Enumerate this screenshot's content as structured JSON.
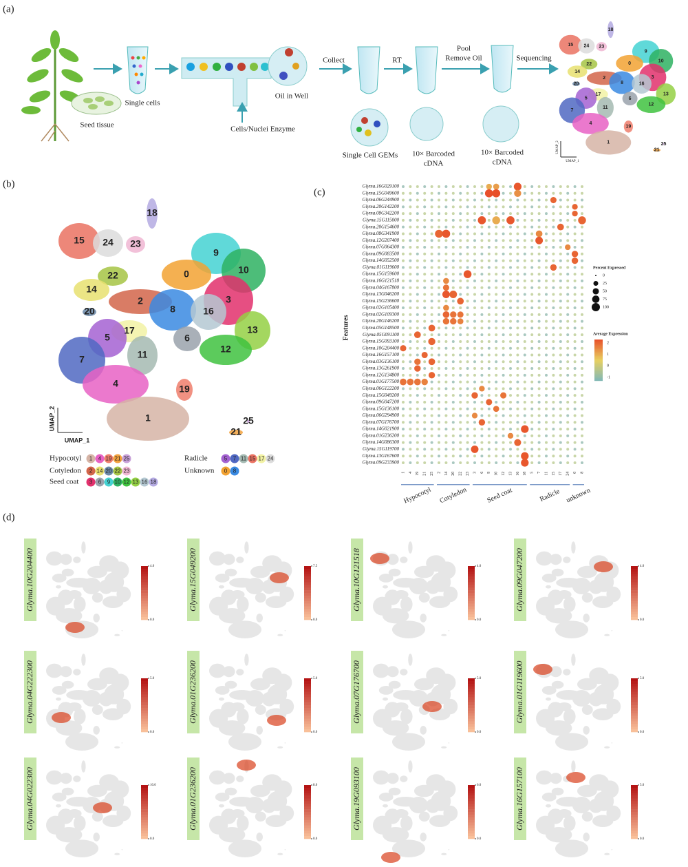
{
  "panel_a": {
    "label": "(a)",
    "seed_tissue": "Seed tissue",
    "single_cells": "Single cells",
    "enzyme": "Cells/Nuclei Enzyme",
    "oil_in_well": "Oil in Well",
    "collect": "Collect",
    "rt": "RT",
    "pool": [
      "Pool",
      "Remove Oil"
    ],
    "sequencing": "Sequencing",
    "gems": "Single Cell GEMs",
    "barcoded_1": [
      "10× Barcoded",
      "cDNA"
    ],
    "barcoded_2": [
      "10× Barcoded",
      "cDNA"
    ],
    "umap_labels": [
      18,
      15,
      24,
      23,
      9,
      10,
      22,
      14,
      0,
      2,
      3,
      8,
      16,
      20,
      17,
      13,
      5,
      6,
      12,
      11,
      7,
      4,
      19,
      1,
      25,
      21
    ],
    "umap_y": "UMAP_2",
    "umap_x": "UMAP_1"
  },
  "panel_b": {
    "label": "(b)",
    "cluster_labels": [
      18,
      15,
      24,
      23,
      9,
      10,
      22,
      14,
      0,
      2,
      3,
      8,
      16,
      20,
      17,
      13,
      5,
      6,
      12,
      11,
      7,
      4,
      19,
      1,
      25,
      21
    ],
    "umap_y": "UMAP_2",
    "umap_x": "UMAP_1",
    "legend": [
      {
        "name": "Hypocotyl",
        "clusters": [
          {
            "id": 1,
            "color": "#d6b4a6"
          },
          {
            "id": 4,
            "color": "#e862c4"
          },
          {
            "id": 19,
            "color": "#ee7e6c"
          },
          {
            "id": 21,
            "color": "#f2a23e"
          },
          {
            "id": 25,
            "color": "#c8a0d8"
          }
        ]
      },
      {
        "name": "Cotyledon",
        "clusters": [
          {
            "id": 2,
            "color": "#d2654a"
          },
          {
            "id": 14,
            "color": "#e8e070"
          },
          {
            "id": 20,
            "color": "#6a88a8"
          },
          {
            "id": 22,
            "color": "#a6c444"
          },
          {
            "id": 23,
            "color": "#f0b6d2"
          }
        ]
      },
      {
        "name": "Seed coat",
        "clusters": [
          {
            "id": 3,
            "color": "#e2306c"
          },
          {
            "id": 6,
            "color": "#9aa2ac"
          },
          {
            "id": 9,
            "color": "#44d2d2"
          },
          {
            "id": 10,
            "color": "#2eb262"
          },
          {
            "id": 12,
            "color": "#3fc23f"
          },
          {
            "id": 13,
            "color": "#94d044"
          },
          {
            "id": 16,
            "color": "#b4c8d2"
          },
          {
            "id": 18,
            "color": "#b4aae2"
          }
        ]
      },
      {
        "name": "Radicle",
        "clusters": [
          {
            "id": 5,
            "color": "#a462d2"
          },
          {
            "id": 7,
            "color": "#5068c2"
          },
          {
            "id": 11,
            "color": "#a4bab2"
          },
          {
            "id": 15,
            "color": "#ea7262"
          },
          {
            "id": 17,
            "color": "#f2f2a4"
          },
          {
            "id": 24,
            "color": "#dcdcdc"
          }
        ]
      },
      {
        "name": "Unknown",
        "clusters": [
          {
            "id": 0,
            "color": "#f2a232"
          },
          {
            "id": 8,
            "color": "#3a8ae2"
          }
        ]
      }
    ]
  },
  "panel_c": {
    "label": "(c)",
    "y_axis": "Features",
    "column_groups": [
      {
        "name": "Hypocotyl",
        "clusters": [
          1,
          4,
          19,
          21,
          25
        ]
      },
      {
        "name": "Cotyledon",
        "clusters": [
          2,
          14,
          20,
          22,
          23
        ]
      },
      {
        "name": "Seed coat",
        "clusters": [
          3,
          6,
          9,
          10,
          12,
          13,
          16,
          18
        ]
      },
      {
        "name": "Radicle",
        "clusters": [
          5,
          7,
          11,
          15,
          17,
          24
        ]
      },
      {
        "name": "unknown",
        "clusters": [
          0,
          8
        ]
      }
    ],
    "genes": [
      {
        "name": "Glyma.16G029100",
        "dots": [
          {
            "cluster": 16,
            "pct": 85,
            "avg": 2.2
          },
          {
            "cluster": 10,
            "pct": 45,
            "avg": 1.2
          },
          {
            "cluster": 9,
            "pct": 40,
            "avg": 1
          }
        ]
      },
      {
        "name": "Glyma.15G049600",
        "dots": [
          {
            "cluster": 9,
            "pct": 95,
            "avg": 2.3
          },
          {
            "cluster": 10,
            "pct": 95,
            "avg": 2.3
          },
          {
            "cluster": 16,
            "pct": 70,
            "avg": 1.4
          }
        ]
      },
      {
        "name": "Glyma.06G244900",
        "dots": [
          {
            "cluster": 15,
            "pct": 50,
            "avg": 2
          }
        ]
      },
      {
        "name": "Glyma.20G142200",
        "dots": [
          {
            "cluster": 0,
            "pct": 40,
            "avg": 2
          }
        ]
      },
      {
        "name": "Glyma.08G342200",
        "dots": [
          {
            "cluster": 0,
            "pct": 40,
            "avg": 2
          }
        ]
      },
      {
        "name": "Glyma.15G115000",
        "dots": [
          {
            "cluster": 6,
            "pct": 95,
            "avg": 2.2
          },
          {
            "cluster": 13,
            "pct": 95,
            "avg": 2.2
          },
          {
            "cluster": 8,
            "pct": 90,
            "avg": 2
          },
          {
            "cluster": 10,
            "pct": 90,
            "avg": 1
          }
        ]
      },
      {
        "name": "Glyma.20G154600",
        "dots": [
          {
            "cluster": 17,
            "pct": 60,
            "avg": 2
          }
        ]
      },
      {
        "name": "Glyma.08G341900",
        "dots": [
          {
            "cluster": 2,
            "pct": 90,
            "avg": 2
          },
          {
            "cluster": 14,
            "pct": 95,
            "avg": 2.2
          },
          {
            "cluster": 7,
            "pct": 60,
            "avg": 1.5
          }
        ]
      },
      {
        "name": "Glyma.12G207400",
        "dots": [
          {
            "cluster": 7,
            "pct": 80,
            "avg": 2.2
          }
        ]
      },
      {
        "name": "Glyma.07G064300",
        "dots": [
          {
            "cluster": 24,
            "pct": 40,
            "avg": 1.5
          }
        ]
      },
      {
        "name": "Glyma.09G083500",
        "dots": [
          {
            "cluster": 0,
            "pct": 55,
            "avg": 2
          }
        ]
      },
      {
        "name": "Glyma.14G052500",
        "dots": [
          {
            "cluster": 0,
            "pct": 55,
            "avg": 2
          }
        ]
      },
      {
        "name": "Glyma.01G119600",
        "dots": [
          {
            "cluster": 15,
            "pct": 55,
            "avg": 2
          }
        ]
      },
      {
        "name": "Glyma.15G159600",
        "dots": [
          {
            "cluster": 23,
            "pct": 90,
            "avg": 2.2
          }
        ]
      },
      {
        "name": "Glyma.16G121518",
        "dots": [
          {
            "cluster": 14,
            "pct": 45,
            "avg": 1.5
          }
        ]
      },
      {
        "name": "Glyma.04G167800",
        "dots": [
          {
            "cluster": 14,
            "pct": 50,
            "avg": 1.8
          }
        ]
      },
      {
        "name": "Glyma.13G046200",
        "dots": [
          {
            "cluster": 14,
            "pct": 80,
            "avg": 2.2
          },
          {
            "cluster": 20,
            "pct": 80,
            "avg": 2
          }
        ]
      },
      {
        "name": "Glyma.15G236600",
        "dots": [
          {
            "cluster": 22,
            "pct": 60,
            "avg": 2
          }
        ]
      },
      {
        "name": "Glyma.02G105400",
        "dots": [
          {
            "cluster": 14,
            "pct": 45,
            "avg": 1.5
          }
        ]
      },
      {
        "name": "Glyma.02G109300",
        "dots": [
          {
            "cluster": 14,
            "pct": 60,
            "avg": 2
          },
          {
            "cluster": 20,
            "pct": 55,
            "avg": 1.8
          },
          {
            "cluster": 22,
            "pct": 50,
            "avg": 1.8
          }
        ]
      },
      {
        "name": "Glyma.20G146200",
        "dots": [
          {
            "cluster": 14,
            "pct": 55,
            "avg": 1.8
          },
          {
            "cluster": 20,
            "pct": 55,
            "avg": 1.8
          },
          {
            "cluster": 22,
            "pct": 45,
            "avg": 1.6
          }
        ]
      },
      {
        "name": "Glyma.05G148500",
        "dots": [
          {
            "cluster": 25,
            "pct": 60,
            "avg": 2
          }
        ]
      },
      {
        "name": "Glyma.05G091100",
        "dots": [
          {
            "cluster": 19,
            "pct": 60,
            "avg": 2
          }
        ]
      },
      {
        "name": "Glyma.15G093100",
        "dots": [
          {
            "cluster": 25,
            "pct": 70,
            "avg": 2
          }
        ]
      },
      {
        "name": "Glyma.10G204400",
        "dots": [
          {
            "cluster": 1,
            "pct": 50,
            "avg": 2
          }
        ]
      },
      {
        "name": "Glyma.16G157100",
        "dots": [
          {
            "cluster": 21,
            "pct": 50,
            "avg": 2
          }
        ]
      },
      {
        "name": "Glyma.03G136100",
        "dots": [
          {
            "cluster": 19,
            "pct": 55,
            "avg": 1.8
          },
          {
            "cluster": 25,
            "pct": 60,
            "avg": 2
          }
        ]
      },
      {
        "name": "Glyma.13G261900",
        "dots": [
          {
            "cluster": 19,
            "pct": 55,
            "avg": 2
          }
        ]
      },
      {
        "name": "Glyma.12G134800",
        "dots": [
          {
            "cluster": 25,
            "pct": 55,
            "avg": 2
          }
        ]
      },
      {
        "name": "Glyma.01G177500",
        "dots": [
          {
            "cluster": 1,
            "pct": 60,
            "avg": 1.8
          },
          {
            "cluster": 4,
            "pct": 60,
            "avg": 1.8
          },
          {
            "cluster": 19,
            "pct": 60,
            "avg": 1.8
          },
          {
            "cluster": 21,
            "pct": 55,
            "avg": 1.6
          }
        ]
      },
      {
        "name": "Glyma.06G122200",
        "dots": [
          {
            "cluster": 6,
            "pct": 40,
            "avg": 1.5
          }
        ]
      },
      {
        "name": "Glyma.15G049200",
        "dots": [
          {
            "cluster": 3,
            "pct": 55,
            "avg": 2
          },
          {
            "cluster": 12,
            "pct": 50,
            "avg": 1.8
          }
        ]
      },
      {
        "name": "Glyma.09G047200",
        "dots": [
          {
            "cluster": 9,
            "pct": 50,
            "avg": 2
          }
        ]
      },
      {
        "name": "Glyma.15G136100",
        "dots": [
          {
            "cluster": 10,
            "pct": 45,
            "avg": 1.8
          }
        ]
      },
      {
        "name": "Glyma.06G294900",
        "dots": [
          {
            "cluster": 3,
            "pct": 40,
            "avg": 1.5
          }
        ]
      },
      {
        "name": "Glyma.07G176700",
        "dots": [
          {
            "cluster": 6,
            "pct": 55,
            "avg": 2
          }
        ]
      },
      {
        "name": "Glyma.14G021900",
        "dots": [
          {
            "cluster": 18,
            "pct": 85,
            "avg": 2.2
          }
        ]
      },
      {
        "name": "Glyma.01G236200",
        "dots": [
          {
            "cluster": 13,
            "pct": 40,
            "avg": 1.5
          }
        ]
      },
      {
        "name": "Glyma.14G086300",
        "dots": [
          {
            "cluster": 16,
            "pct": 65,
            "avg": 2
          }
        ]
      },
      {
        "name": "Glyma.15G119700",
        "dots": [
          {
            "cluster": 3,
            "pct": 80,
            "avg": 2.2
          }
        ]
      },
      {
        "name": "Glyma.13G167600",
        "dots": [
          {
            "cluster": 18,
            "pct": 85,
            "avg": 2.2
          }
        ]
      },
      {
        "name": "Glyma.09G233900",
        "dots": [
          {
            "cluster": 18,
            "pct": 85,
            "avg": 2.2
          }
        ]
      }
    ],
    "size_legend": {
      "title": "Percent Expressed",
      "ticks": [
        0,
        25,
        50,
        75,
        100
      ]
    },
    "color_legend": {
      "title": "Average Expression",
      "ticks": [
        2,
        1,
        0,
        -1
      ],
      "colors": [
        "#7fb8b8",
        "#e8d060",
        "#e8502a"
      ],
      "lim": [
        -1.3,
        2.3
      ]
    }
  },
  "panel_d": {
    "label": "(d)",
    "panels": [
      {
        "gene": "Glyma.10G204400",
        "max": {
          "value": 4,
          "label": "4.0"
        },
        "min": {
          "value": 0,
          "label": "0.0"
        }
      },
      {
        "gene": "Glyma.15G049200",
        "max": {
          "value": 7.5,
          "label": "7.5"
        },
        "min": {
          "value": 0,
          "label": "0.0"
        }
      },
      {
        "gene": "Glyma.10G121518",
        "max": {
          "value": 4,
          "label": "4.0"
        },
        "min": {
          "value": 0,
          "label": "0.0"
        }
      },
      {
        "gene": "Glyma.09G047200",
        "max": {
          "value": 4,
          "label": "4.0"
        },
        "min": {
          "value": 0,
          "label": "0.0"
        }
      },
      {
        "gene": "Glyma.04G222300",
        "max": {
          "value": 5,
          "label": "5.0"
        },
        "min": {
          "value": 0,
          "label": "0.0"
        }
      },
      {
        "gene": "Glyma.01G236200",
        "max": {
          "value": 5,
          "label": "5.0"
        },
        "min": {
          "value": 0,
          "label": "0.0"
        }
      },
      {
        "gene": "Glyma.07G176700",
        "max": {
          "value": 5,
          "label": "5.0"
        },
        "min": {
          "value": 0,
          "label": "0.0"
        }
      },
      {
        "gene": "Glyma.01G119600",
        "max": {
          "value": 5,
          "label": "5.0"
        },
        "min": {
          "value": 0,
          "label": "0.0"
        }
      },
      {
        "gene": "Glyma.04G022300",
        "max": {
          "value": 10,
          "label": "10.0"
        },
        "min": {
          "value": 0,
          "label": "0.0"
        }
      },
      {
        "gene": "Glyma.01G236200",
        "max": {
          "value": 8,
          "label": "8.0"
        },
        "min": {
          "value": 0,
          "label": "0.0"
        }
      },
      {
        "gene": "Glyma.19G093100",
        "max": {
          "value": 6,
          "label": "6.0"
        },
        "min": {
          "value": 0,
          "label": "0.0"
        }
      },
      {
        "gene": "Glyma.16G157100",
        "max": {
          "value": 5,
          "label": "5.0"
        },
        "min": {
          "value": 0,
          "label": "0.0"
        }
      }
    ]
  }
}
